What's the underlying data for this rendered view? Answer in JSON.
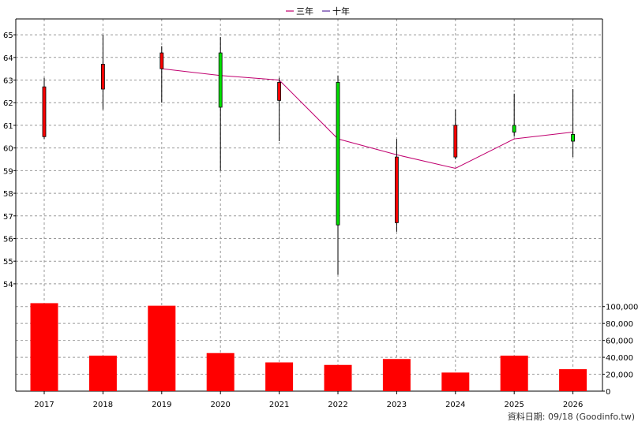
{
  "chart_data": {
    "type": "candlestick+bar",
    "legend": [
      {
        "label": "三年",
        "color": "#c0006f"
      },
      {
        "label": "十年",
        "color": "#5a2ca0"
      }
    ],
    "categories": [
      "2017",
      "2018",
      "2019",
      "2020",
      "2021",
      "2022",
      "2023",
      "2024",
      "2025",
      "2026"
    ],
    "price_axis": {
      "ylim": [
        53.3,
        65.7
      ],
      "ticks": [
        "54",
        "55",
        "56",
        "57",
        "58",
        "59",
        "60",
        "61",
        "62",
        "63",
        "64",
        "65"
      ]
    },
    "volume_axis": {
      "ylim": [
        0,
        110000
      ],
      "ticks": [
        "0",
        "20,000",
        "40,000",
        "60,000",
        "80,000",
        "100,000"
      ]
    },
    "candles": [
      {
        "open": 60.5,
        "close": 62.7,
        "high": 63.1,
        "low": 60.4
      },
      {
        "open": 62.6,
        "close": 63.7,
        "high": 65.0,
        "low": 61.7
      },
      {
        "open": 63.5,
        "close": 64.2,
        "high": 64.5,
        "low": 62.0
      },
      {
        "open": 64.2,
        "close": 61.8,
        "high": 64.9,
        "low": 59.0
      },
      {
        "open": 62.1,
        "close": 62.9,
        "high": 63.1,
        "low": 60.3
      },
      {
        "open": 62.9,
        "close": 56.6,
        "high": 63.2,
        "low": 54.4
      },
      {
        "open": 56.7,
        "close": 59.6,
        "high": 60.4,
        "low": 56.3
      },
      {
        "open": 59.6,
        "close": 61.0,
        "high": 61.7,
        "low": 59.5
      },
      {
        "open": 61.0,
        "close": 60.7,
        "high": 62.4,
        "low": 60.5
      },
      {
        "open": 60.6,
        "close": 60.3,
        "high": 62.6,
        "low": 59.6
      }
    ],
    "three_year_line": [
      {
        "x": "2019",
        "y": 63.5
      },
      {
        "x": "2020",
        "y": 63.2
      },
      {
        "x": "2021",
        "y": 63.0
      },
      {
        "x": "2022",
        "y": 60.4
      },
      {
        "x": "2023",
        "y": 59.7
      },
      {
        "x": "2024",
        "y": 59.1
      },
      {
        "x": "2025",
        "y": 60.4
      },
      {
        "x": "2026",
        "y": 60.7
      }
    ],
    "volume": [
      104000,
      42000,
      101000,
      45000,
      34000,
      31000,
      38000,
      22000,
      42000,
      26000
    ],
    "colors": {
      "up": "#ff0000",
      "down": "#00e000",
      "volume": "#ff0000",
      "grid": "#999999"
    },
    "grid": true
  },
  "footer": {
    "text": "資料日期: 09/18 (Goodinfo.tw)"
  }
}
